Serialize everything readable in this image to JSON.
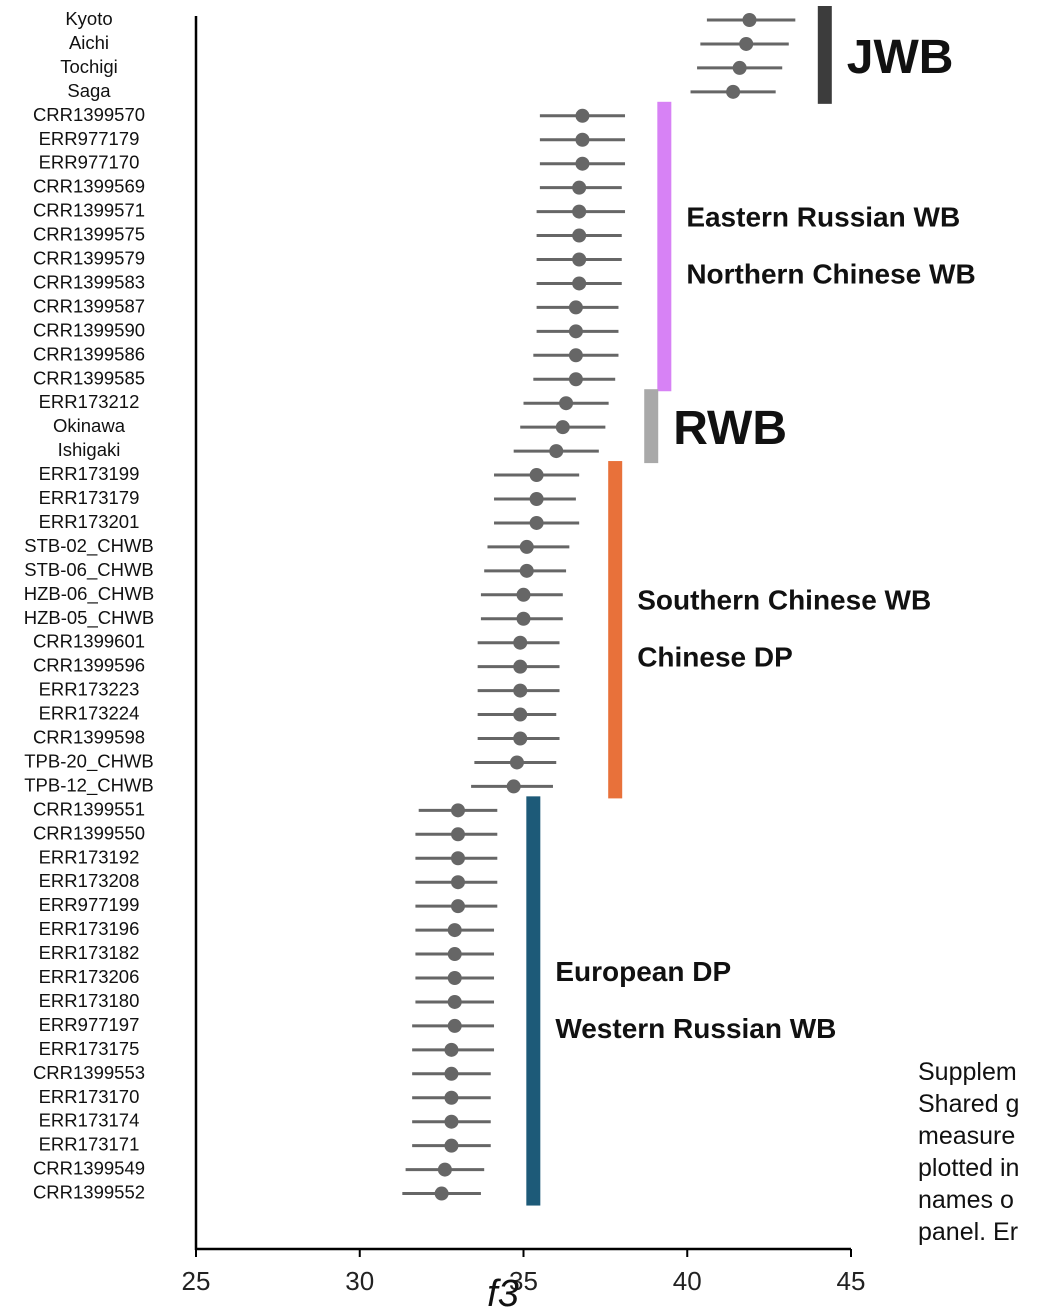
{
  "chart_data": {
    "type": "scatter",
    "subtype": "dot-and-whisker",
    "xlabel": "f3",
    "xlim": [
      25,
      45
    ],
    "xticks": [
      "25",
      "30",
      "35",
      "40",
      "45"
    ],
    "orientation": "horizontal",
    "points": [
      {
        "label": "Kyoto",
        "value": 41.9,
        "low": 40.6,
        "high": 43.3
      },
      {
        "label": "Aichi",
        "value": 41.8,
        "low": 40.4,
        "high": 43.1
      },
      {
        "label": "Tochigi",
        "value": 41.6,
        "low": 40.3,
        "high": 42.9
      },
      {
        "label": "Saga",
        "value": 41.4,
        "low": 40.1,
        "high": 42.7
      },
      {
        "label": "CRR1399570",
        "value": 36.8,
        "low": 35.5,
        "high": 38.1
      },
      {
        "label": "ERR977179",
        "value": 36.8,
        "low": 35.5,
        "high": 38.1
      },
      {
        "label": "ERR977170",
        "value": 36.8,
        "low": 35.5,
        "high": 38.1
      },
      {
        "label": "CRR1399569",
        "value": 36.7,
        "low": 35.5,
        "high": 38.0
      },
      {
        "label": "CRR1399571",
        "value": 36.7,
        "low": 35.4,
        "high": 38.1
      },
      {
        "label": "CRR1399575",
        "value": 36.7,
        "low": 35.4,
        "high": 38.0
      },
      {
        "label": "CRR1399579",
        "value": 36.7,
        "low": 35.4,
        "high": 38.0
      },
      {
        "label": "CRR1399583",
        "value": 36.7,
        "low": 35.4,
        "high": 38.0
      },
      {
        "label": "CRR1399587",
        "value": 36.6,
        "low": 35.4,
        "high": 37.9
      },
      {
        "label": "CRR1399590",
        "value": 36.6,
        "low": 35.4,
        "high": 37.9
      },
      {
        "label": "CRR1399586",
        "value": 36.6,
        "low": 35.3,
        "high": 37.9
      },
      {
        "label": "CRR1399585",
        "value": 36.6,
        "low": 35.3,
        "high": 37.8
      },
      {
        "label": "ERR173212",
        "value": 36.3,
        "low": 35.0,
        "high": 37.6
      },
      {
        "label": "Okinawa",
        "value": 36.2,
        "low": 34.9,
        "high": 37.5
      },
      {
        "label": "Ishigaki",
        "value": 36.0,
        "low": 34.7,
        "high": 37.3
      },
      {
        "label": "ERR173199",
        "value": 35.4,
        "low": 34.1,
        "high": 36.7
      },
      {
        "label": "ERR173179",
        "value": 35.4,
        "low": 34.1,
        "high": 36.6
      },
      {
        "label": "ERR173201",
        "value": 35.4,
        "low": 34.1,
        "high": 36.7
      },
      {
        "label": "STB-02_CHWB",
        "value": 35.1,
        "low": 33.9,
        "high": 36.4
      },
      {
        "label": "STB-06_CHWB",
        "value": 35.1,
        "low": 33.8,
        "high": 36.3
      },
      {
        "label": "HZB-06_CHWB",
        "value": 35.0,
        "low": 33.7,
        "high": 36.2
      },
      {
        "label": "HZB-05_CHWB",
        "value": 35.0,
        "low": 33.7,
        "high": 36.2
      },
      {
        "label": "CRR1399601",
        "value": 34.9,
        "low": 33.6,
        "high": 36.1
      },
      {
        "label": "CRR1399596",
        "value": 34.9,
        "low": 33.6,
        "high": 36.1
      },
      {
        "label": "ERR173223",
        "value": 34.9,
        "low": 33.6,
        "high": 36.1
      },
      {
        "label": "ERR173224",
        "value": 34.9,
        "low": 33.6,
        "high": 36.0
      },
      {
        "label": "CRR1399598",
        "value": 34.9,
        "low": 33.6,
        "high": 36.1
      },
      {
        "label": "TPB-20_CHWB",
        "value": 34.8,
        "low": 33.5,
        "high": 36.0
      },
      {
        "label": "TPB-12_CHWB",
        "value": 34.7,
        "low": 33.4,
        "high": 35.9
      },
      {
        "label": "CRR1399551",
        "value": 33.0,
        "low": 31.8,
        "high": 34.2
      },
      {
        "label": "CRR1399550",
        "value": 33.0,
        "low": 31.7,
        "high": 34.2
      },
      {
        "label": "ERR173192",
        "value": 33.0,
        "low": 31.7,
        "high": 34.2
      },
      {
        "label": "ERR173208",
        "value": 33.0,
        "low": 31.7,
        "high": 34.2
      },
      {
        "label": "ERR977199",
        "value": 33.0,
        "low": 31.7,
        "high": 34.2
      },
      {
        "label": "ERR173196",
        "value": 32.9,
        "low": 31.7,
        "high": 34.1
      },
      {
        "label": "ERR173182",
        "value": 32.9,
        "low": 31.7,
        "high": 34.1
      },
      {
        "label": "ERR173206",
        "value": 32.9,
        "low": 31.7,
        "high": 34.1
      },
      {
        "label": "ERR173180",
        "value": 32.9,
        "low": 31.7,
        "high": 34.1
      },
      {
        "label": "ERR977197",
        "value": 32.9,
        "low": 31.6,
        "high": 34.1
      },
      {
        "label": "ERR173175",
        "value": 32.8,
        "low": 31.6,
        "high": 34.1
      },
      {
        "label": "CRR1399553",
        "value": 32.8,
        "low": 31.6,
        "high": 34.0
      },
      {
        "label": "ERR173170",
        "value": 32.8,
        "low": 31.6,
        "high": 34.0
      },
      {
        "label": "ERR173174",
        "value": 32.8,
        "low": 31.6,
        "high": 34.0
      },
      {
        "label": "ERR173171",
        "value": 32.8,
        "low": 31.6,
        "high": 34.0
      },
      {
        "label": "CRR1399549",
        "value": 32.6,
        "low": 31.4,
        "high": 33.8
      },
      {
        "label": "CRR1399552",
        "value": 32.5,
        "low": 31.3,
        "high": 33.7
      }
    ],
    "groups": [
      {
        "labels": [
          "JWB"
        ],
        "color": "#3c3c3c",
        "first": 0,
        "last": 3,
        "x": 44.2,
        "size": "large"
      },
      {
        "labels": [
          "Eastern Russian WB",
          "Northern Chinese WB"
        ],
        "color": "#d782f5",
        "first": 4,
        "last": 15,
        "x": 39.3,
        "size": "medium"
      },
      {
        "labels": [
          "RWB"
        ],
        "color": "#a9a9a9",
        "first": 16,
        "last": 18,
        "x": 38.9,
        "size": "large"
      },
      {
        "labels": [
          "Southern Chinese WB",
          "Chinese DP"
        ],
        "color": "#e8713a",
        "first": 19,
        "last": 32,
        "x": 37.8,
        "size": "medium"
      },
      {
        "labels": [
          "European DP",
          "Western Russian WB"
        ],
        "color": "#1d5a78",
        "first": 33,
        "last": 49,
        "x": 35.3,
        "size": "medium"
      }
    ],
    "point_color": "#666666"
  },
  "caption": {
    "lines": [
      "Supplem",
      "Shared g",
      "measure",
      "plotted in",
      "names o",
      "panel. Er"
    ]
  }
}
